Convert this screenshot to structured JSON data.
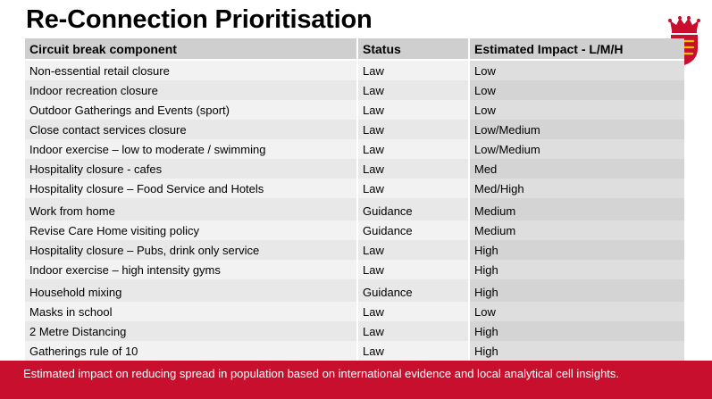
{
  "title": "Re-Connection Prioritisation",
  "logo": {
    "icon": "crown-shield-icon",
    "primary_color": "#c8102e"
  },
  "table": {
    "headers": [
      "Circuit break component",
      "Status",
      "Estimated Impact - L/M/H"
    ],
    "rows": [
      {
        "component": "Non-essential retail closure",
        "status": "Law",
        "impact": "Low"
      },
      {
        "component": "Indoor recreation closure",
        "status": "Law",
        "impact": "Low"
      },
      {
        "component": "Outdoor Gatherings and Events (sport)",
        "status": "Law",
        "impact": "Low"
      },
      {
        "component": "Close contact services closure",
        "status": "Law",
        "impact": "Low/Medium"
      },
      {
        "component": "Indoor exercise – low to moderate / swimming",
        "status": "Law",
        "impact": "Low/Medium"
      },
      {
        "component": "Hospitality closure -  cafes",
        "status": "Law",
        "impact": "Med"
      },
      {
        "component": "Hospitality closure – Food Service and Hotels",
        "status": "Law",
        "impact": "Med/High"
      },
      {
        "component": "Work from home",
        "status": "Guidance",
        "impact": "Medium"
      },
      {
        "component": "Revise Care Home visiting policy",
        "status": "Guidance",
        "impact": "Medium"
      },
      {
        "component": "Hospitality closure – Pubs, drink only service",
        "status": "Law",
        "impact": "High"
      },
      {
        "component": "Indoor exercise – high intensity gyms",
        "status": "Law",
        "impact": "High"
      },
      {
        "component": "Household mixing",
        "status": "Guidance",
        "impact": "High"
      },
      {
        "component": "Masks in school",
        "status": "Law",
        "impact": "Low"
      },
      {
        "component": "2 Metre Distancing",
        "status": "Law",
        "impact": "High"
      },
      {
        "component": "Gatherings rule of 10",
        "status": "Law",
        "impact": "High"
      }
    ]
  },
  "footer": {
    "text": "Estimated impact on reducing spread in population based on international evidence and local analytical cell insights."
  }
}
